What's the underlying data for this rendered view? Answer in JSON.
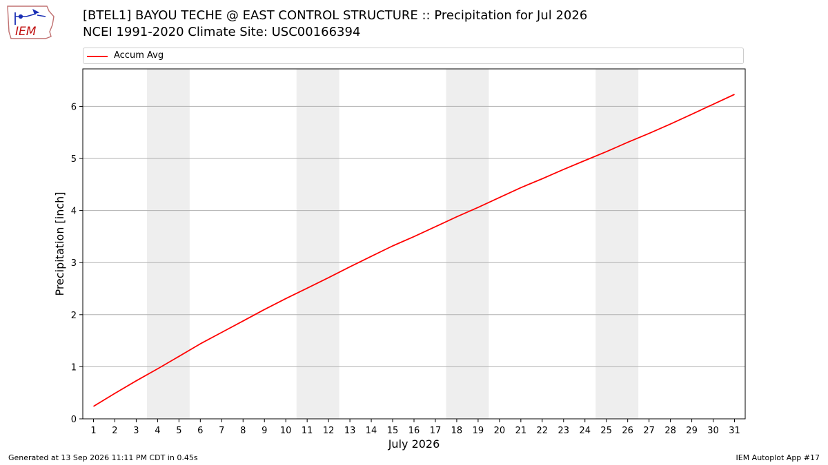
{
  "header": {
    "logo_text": "IEM",
    "title_line1": "[BTEL1] BAYOU TECHE @ EAST CONTROL STRUCTURE :: Precipitation for Jul 2026",
    "title_line2": "NCEI 1991-2020 Climate Site: USC00166394"
  },
  "footer": {
    "generated": "Generated at 13 Sep 2026 11:11 PM CDT in 0.45s",
    "app": "IEM Autoplot App #17"
  },
  "colors": {
    "line": "#ff0000",
    "weekend_band": "#eeeeee",
    "grid": "#b0b0b0"
  },
  "chart_data": {
    "type": "line",
    "xlabel": "July 2026",
    "ylabel": "Precipitation [inch]",
    "xlim": [
      0.5,
      31.5
    ],
    "ylim": [
      0,
      6.72
    ],
    "yticks": [
      0,
      1,
      2,
      3,
      4,
      5,
      6
    ],
    "xticks": [
      1,
      2,
      3,
      4,
      5,
      6,
      7,
      8,
      9,
      10,
      11,
      12,
      13,
      14,
      15,
      16,
      17,
      18,
      19,
      20,
      21,
      22,
      23,
      24,
      25,
      26,
      27,
      28,
      29,
      30,
      31
    ],
    "grid": "horizontal",
    "legend_position": "top",
    "shaded_weekends": [
      [
        4,
        5
      ],
      [
        11,
        12
      ],
      [
        18,
        19
      ],
      [
        25,
        26
      ]
    ],
    "series": [
      {
        "name": "Accum Avg",
        "x": [
          1,
          2,
          3,
          4,
          5,
          6,
          7,
          8,
          9,
          10,
          11,
          12,
          13,
          14,
          15,
          16,
          17,
          18,
          19,
          20,
          21,
          22,
          23,
          24,
          25,
          26,
          27,
          28,
          29,
          30,
          31
        ],
        "values": [
          0.24,
          0.49,
          0.73,
          0.96,
          1.2,
          1.44,
          1.66,
          1.88,
          2.1,
          2.31,
          2.51,
          2.71,
          2.92,
          3.12,
          3.32,
          3.5,
          3.69,
          3.88,
          4.06,
          4.25,
          4.44,
          4.61,
          4.79,
          4.96,
          5.13,
          5.31,
          5.48,
          5.66,
          5.85,
          6.04,
          6.23
        ]
      }
    ]
  }
}
